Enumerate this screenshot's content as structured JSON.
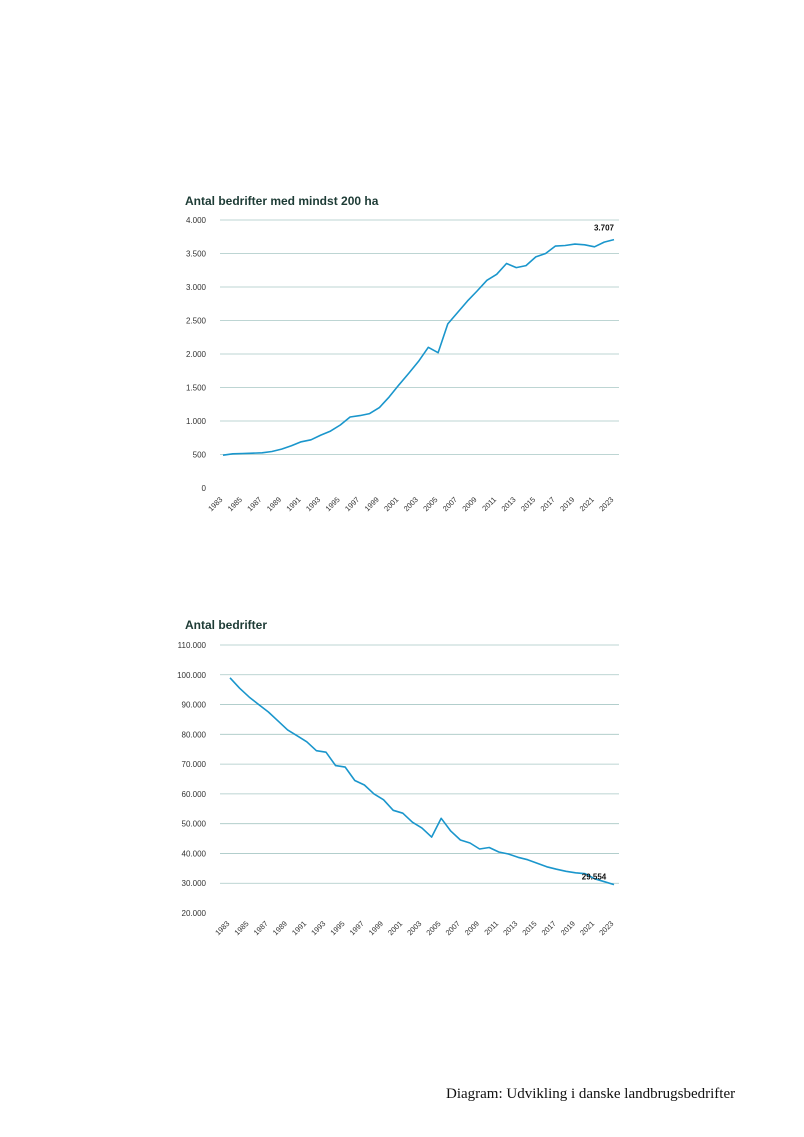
{
  "colors": {
    "line": "#1a96cc",
    "grid": "#a7c7c4",
    "title": "#1d3b35"
  },
  "caption": "Diagram: Udvikling i danske landbrugsbedrifter",
  "chart_data": [
    {
      "type": "line",
      "title": "Antal bedrifter med mindst 200 ha",
      "xlabel": "",
      "ylabel": "",
      "grid": true,
      "ylim": [
        0,
        4000
      ],
      "yticks": [
        0,
        500,
        1000,
        1500,
        2000,
        2500,
        3000,
        3500,
        4000
      ],
      "ytick_labels": [
        "0",
        "500",
        "1.000",
        "1.500",
        "2.000",
        "2.500",
        "3.000",
        "3.500",
        "4.000"
      ],
      "xtick_labels": [
        "1983",
        "1985",
        "1987",
        "1989",
        "1991",
        "1993",
        "1995",
        "1997",
        "1999",
        "2001",
        "2003",
        "2005",
        "2007",
        "2009",
        "2011",
        "2013",
        "2015",
        "2017",
        "2019",
        "2021",
        "2023"
      ],
      "x": [
        1983,
        1984,
        1985,
        1986,
        1987,
        1988,
        1989,
        1990,
        1991,
        1992,
        1993,
        1994,
        1995,
        1996,
        1997,
        1998,
        1999,
        2000,
        2001,
        2002,
        2003,
        2004,
        2005,
        2006,
        2007,
        2008,
        2009,
        2010,
        2011,
        2012,
        2013,
        2014,
        2015,
        2016,
        2017,
        2018,
        2019,
        2020,
        2021,
        2022,
        2023
      ],
      "values": [
        490,
        510,
        515,
        520,
        525,
        545,
        580,
        630,
        690,
        720,
        790,
        850,
        940,
        1060,
        1080,
        1110,
        1200,
        1360,
        1540,
        1710,
        1890,
        2100,
        2020,
        2450,
        2620,
        2790,
        2940,
        3100,
        3190,
        3350,
        3290,
        3320,
        3450,
        3500,
        3610,
        3620,
        3640,
        3630,
        3600,
        3670,
        3707
      ],
      "end_label": "3.707"
    },
    {
      "type": "line",
      "title": "Antal bedrifter",
      "xlabel": "",
      "ylabel": "",
      "grid": true,
      "ylim": [
        20000,
        110000
      ],
      "yticks": [
        20000,
        30000,
        40000,
        50000,
        60000,
        70000,
        80000,
        90000,
        100000,
        110000
      ],
      "ytick_labels": [
        "20.000",
        "30.000",
        "40.000",
        "50.000",
        "60.000",
        "70.000",
        "80.000",
        "90.000",
        "100.000",
        "110.000"
      ],
      "xtick_labels": [
        "1983",
        "1985",
        "1987",
        "1989",
        "1991",
        "1993",
        "1995",
        "1997",
        "1999",
        "2001",
        "2003",
        "2005",
        "2007",
        "2009",
        "2011",
        "2013",
        "2015",
        "2017",
        "2019",
        "2021",
        "2023"
      ],
      "x": [
        1983,
        1984,
        1985,
        1986,
        1987,
        1988,
        1989,
        1990,
        1991,
        1992,
        1993,
        1994,
        1995,
        1996,
        1997,
        1998,
        1999,
        2000,
        2001,
        2002,
        2003,
        2004,
        2005,
        2006,
        2007,
        2008,
        2009,
        2010,
        2011,
        2012,
        2013,
        2014,
        2015,
        2016,
        2017,
        2018,
        2019,
        2020,
        2021,
        2022,
        2023
      ],
      "values": [
        99000,
        95500,
        92500,
        90000,
        87500,
        84500,
        81500,
        79500,
        77500,
        74500,
        74000,
        69500,
        69000,
        64500,
        63000,
        60000,
        58000,
        54500,
        53500,
        50500,
        48500,
        45500,
        51800,
        47500,
        44500,
        43500,
        41500,
        42000,
        40500,
        39800,
        38700,
        37900,
        36700,
        35500,
        34700,
        34000,
        33500,
        33200,
        31500,
        30500,
        29554
      ],
      "end_label": "29.554"
    }
  ]
}
